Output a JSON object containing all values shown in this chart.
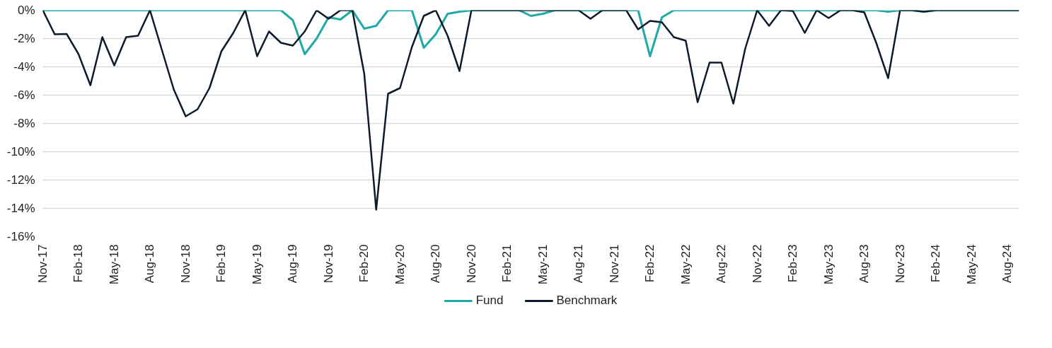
{
  "chart_data": {
    "type": "line",
    "x": [
      "2017-11",
      "2017-12",
      "2018-01",
      "2018-02",
      "2018-03",
      "2018-04",
      "2018-05",
      "2018-06",
      "2018-07",
      "2018-08",
      "2018-09",
      "2018-10",
      "2018-11",
      "2018-12",
      "2019-01",
      "2019-02",
      "2019-03",
      "2019-04",
      "2019-05",
      "2019-06",
      "2019-07",
      "2019-08",
      "2019-09",
      "2019-10",
      "2019-11",
      "2019-12",
      "2020-01",
      "2020-02",
      "2020-03",
      "2020-04",
      "2020-05",
      "2020-06",
      "2020-07",
      "2020-08",
      "2020-09",
      "2020-10",
      "2020-11",
      "2020-12",
      "2021-01",
      "2021-02",
      "2021-03",
      "2021-04",
      "2021-05",
      "2021-06",
      "2021-07",
      "2021-08",
      "2021-09",
      "2021-10",
      "2021-11",
      "2021-12",
      "2022-01",
      "2022-02",
      "2022-03",
      "2022-04",
      "2022-05",
      "2022-06",
      "2022-07",
      "2022-08",
      "2022-09",
      "2022-10",
      "2022-11",
      "2022-12",
      "2023-01",
      "2023-02",
      "2023-03",
      "2023-04",
      "2023-05",
      "2023-06",
      "2023-07",
      "2023-08",
      "2023-09",
      "2023-10",
      "2023-11",
      "2023-12",
      "2024-01",
      "2024-02",
      "2024-03",
      "2024-04",
      "2024-05",
      "2024-06",
      "2024-07",
      "2024-08",
      "2024-09"
    ],
    "series": [
      {
        "name": "Fund",
        "color": "#20aaa6",
        "values": [
          0,
          0,
          0,
          0,
          0,
          0,
          0,
          0,
          0,
          0,
          0,
          0,
          0,
          0,
          0,
          0,
          0,
          0,
          0,
          0,
          0,
          -0.7,
          -3.1,
          -2.0,
          -0.5,
          -0.65,
          0,
          -1.3,
          -1.1,
          0,
          0,
          0,
          -2.65,
          -1.7,
          -0.25,
          -0.1,
          0,
          0,
          0,
          0,
          0,
          -0.4,
          -0.25,
          0,
          0,
          0,
          0,
          0,
          0,
          0,
          0,
          -3.25,
          -0.5,
          0,
          0,
          0,
          0,
          0,
          0,
          0,
          0,
          0,
          0,
          0,
          0,
          0,
          0,
          0,
          0,
          0,
          0,
          -0.1,
          0,
          0,
          -0.1,
          0,
          0,
          0,
          0,
          0,
          0,
          0,
          0
        ]
      },
      {
        "name": "Benchmark",
        "color": "#0c1a2b",
        "values": [
          0,
          -1.7,
          -1.67,
          -3.1,
          -5.3,
          -1.9,
          -3.9,
          -1.9,
          -1.8,
          0,
          -2.8,
          -5.6,
          -7.5,
          -7.0,
          -5.5,
          -2.9,
          -1.6,
          0,
          -3.25,
          -1.5,
          -2.3,
          -2.5,
          -1.5,
          0,
          -0.6,
          0,
          0,
          -4.5,
          -14.1,
          -5.9,
          -5.5,
          -2.6,
          -0.4,
          0,
          -1.8,
          -4.3,
          0,
          0,
          0,
          0,
          0,
          0,
          0,
          0,
          0,
          0,
          -0.6,
          0,
          0,
          0,
          -1.35,
          -0.75,
          -0.85,
          -1.9,
          -2.15,
          -6.5,
          -3.7,
          -3.7,
          -6.6,
          -2.7,
          0,
          -1.1,
          0,
          -0.05,
          -1.6,
          0,
          -0.55,
          0,
          0,
          -0.15,
          -2.3,
          -4.8,
          0,
          0,
          -0.1,
          0,
          0,
          0,
          0,
          0,
          0,
          0,
          0
        ]
      }
    ],
    "xlim": [
      "2017-11",
      "2024-09"
    ],
    "xticks": [
      {
        "value": "2017-11",
        "label": "Nov-17"
      },
      {
        "value": "2018-02",
        "label": "Feb-18"
      },
      {
        "value": "2018-05",
        "label": "May-18"
      },
      {
        "value": "2018-08",
        "label": "Aug-18"
      },
      {
        "value": "2018-11",
        "label": "Nov-18"
      },
      {
        "value": "2019-02",
        "label": "Feb-19"
      },
      {
        "value": "2019-05",
        "label": "May-19"
      },
      {
        "value": "2019-08",
        "label": "Aug-19"
      },
      {
        "value": "2019-11",
        "label": "Nov-19"
      },
      {
        "value": "2020-02",
        "label": "Feb-20"
      },
      {
        "value": "2020-05",
        "label": "May-20"
      },
      {
        "value": "2020-08",
        "label": "Aug-20"
      },
      {
        "value": "2020-11",
        "label": "Nov-20"
      },
      {
        "value": "2021-02",
        "label": "Feb-21"
      },
      {
        "value": "2021-05",
        "label": "May-21"
      },
      {
        "value": "2021-08",
        "label": "Aug-21"
      },
      {
        "value": "2021-11",
        "label": "Nov-21"
      },
      {
        "value": "2022-02",
        "label": "Feb-22"
      },
      {
        "value": "2022-05",
        "label": "May-22"
      },
      {
        "value": "2022-08",
        "label": "Aug-22"
      },
      {
        "value": "2022-11",
        "label": "Nov-22"
      },
      {
        "value": "2023-02",
        "label": "Feb-23"
      },
      {
        "value": "2023-05",
        "label": "May-23"
      },
      {
        "value": "2023-08",
        "label": "Aug-23"
      },
      {
        "value": "2023-11",
        "label": "Nov-23"
      },
      {
        "value": "2024-02",
        "label": "Feb-24"
      },
      {
        "value": "2024-05",
        "label": "May-24"
      },
      {
        "value": "2024-08",
        "label": "Aug-24"
      }
    ],
    "ylim": [
      -16,
      0
    ],
    "yticks": [
      {
        "value": 0,
        "label": "0%"
      },
      {
        "value": -2,
        "label": "-2%"
      },
      {
        "value": -4,
        "label": "-4%"
      },
      {
        "value": -6,
        "label": "-6%"
      },
      {
        "value": -8,
        "label": "-8%"
      },
      {
        "value": -10,
        "label": "-10%"
      },
      {
        "value": -12,
        "label": "-12%"
      },
      {
        "value": -14,
        "label": "-14%"
      },
      {
        "value": -16,
        "label": "-16%"
      }
    ],
    "grid": "y",
    "legend": "bottom",
    "line_style": "solid",
    "marker": "none"
  }
}
